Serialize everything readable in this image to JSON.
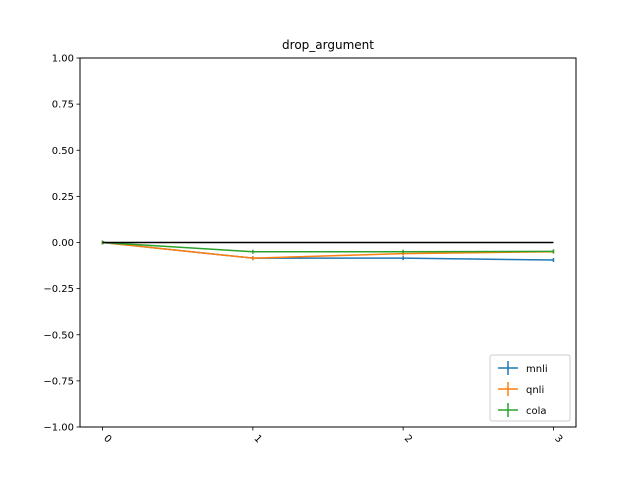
{
  "chart_data": {
    "type": "line",
    "title": "drop_argument",
    "xlabel": "",
    "ylabel": "",
    "x": [
      0,
      1,
      2,
      3
    ],
    "x_tick_labels": [
      "0",
      "1",
      "2",
      "3"
    ],
    "x_tick_rotation": 45,
    "xlim": [
      -0.15,
      3.15
    ],
    "ylim": [
      -1.0,
      1.0
    ],
    "y_ticks": [
      1.0,
      0.75,
      0.5,
      0.25,
      0.0,
      -0.25,
      -0.5,
      -0.75,
      -1.0
    ],
    "y_tick_labels": [
      "1.00",
      "0.75",
      "0.50",
      "0.25",
      "0.00",
      "−0.25",
      "−0.50",
      "−0.75",
      "−1.00"
    ],
    "grid": false,
    "legend_position": "lower-right",
    "baseline": {
      "y": 0.0,
      "color": "#000000"
    },
    "series": [
      {
        "name": "mnli",
        "color": "#1f77b4",
        "values": [
          0.0,
          -0.085,
          -0.085,
          -0.095
        ]
      },
      {
        "name": "qnli",
        "color": "#ff7f0e",
        "values": [
          0.0,
          -0.085,
          -0.06,
          -0.05
        ]
      },
      {
        "name": "cola",
        "color": "#2ca02c",
        "values": [
          0.0,
          -0.05,
          -0.05,
          -0.048
        ]
      }
    ]
  }
}
